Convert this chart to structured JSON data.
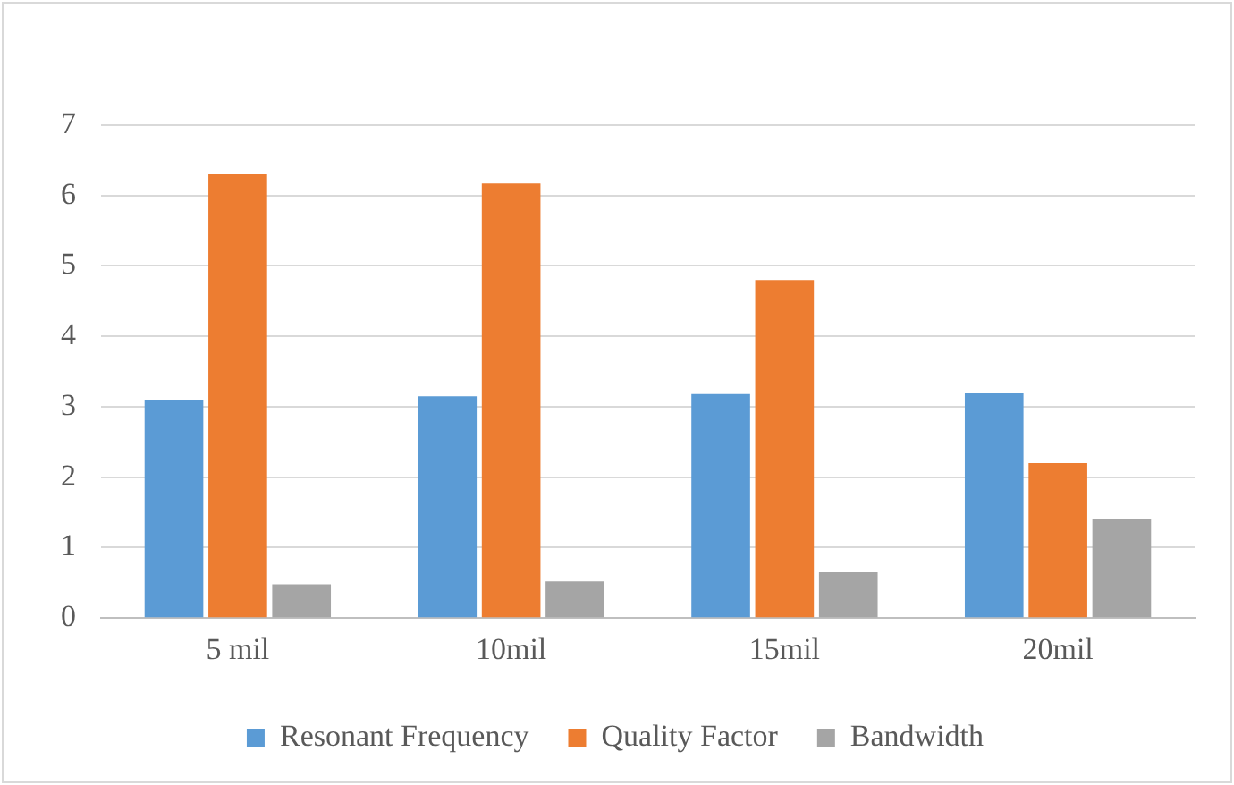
{
  "chart_data": {
    "type": "bar",
    "categories": [
      "5 mil",
      "10mil",
      "15mil",
      "20mil"
    ],
    "series": [
      {
        "name": "Resonant Frequency",
        "color": "#5b9bd5",
        "values": [
          3.1,
          3.15,
          3.18,
          3.2
        ]
      },
      {
        "name": "Quality Factor",
        "color": "#ed7d31",
        "values": [
          6.3,
          6.17,
          4.8,
          2.2
        ]
      },
      {
        "name": "Bandwidth",
        "color": "#a5a5a5",
        "values": [
          0.48,
          0.52,
          0.65,
          1.4
        ]
      }
    ],
    "ylim": [
      0,
      7
    ],
    "yticks": [
      0,
      1,
      2,
      3,
      4,
      5,
      6,
      7
    ],
    "grid": "y",
    "legend": "bottom"
  }
}
